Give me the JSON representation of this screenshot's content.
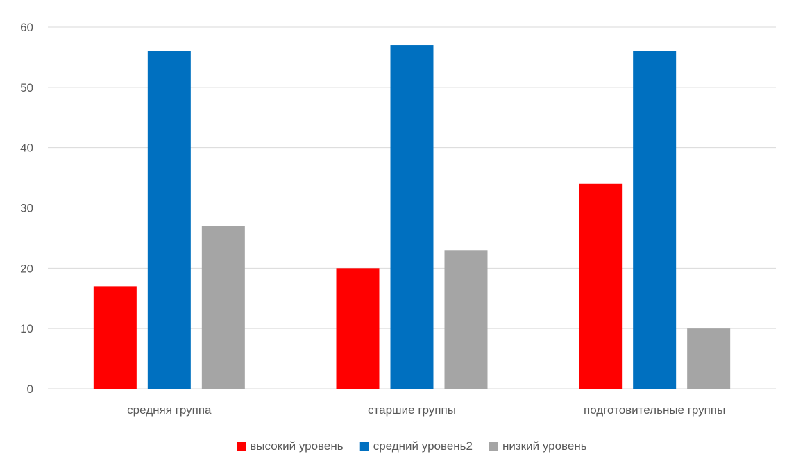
{
  "chart_data": {
    "type": "bar",
    "categories": [
      "средняя группа",
      "старшие группы",
      "подготовительные группы"
    ],
    "series": [
      {
        "name": "высокий уровень",
        "color": "#ff0000",
        "values": [
          17,
          20,
          34
        ]
      },
      {
        "name": "средний уровень2",
        "color": "#0070c0",
        "values": [
          56,
          57,
          56
        ]
      },
      {
        "name": "низкий уровень",
        "color": "#a5a5a5",
        "values": [
          27,
          23,
          10
        ]
      }
    ],
    "ylim": [
      0,
      60
    ],
    "yticks": [
      0,
      10,
      20,
      30,
      40,
      50,
      60
    ],
    "grid": true,
    "legend_position": "bottom"
  }
}
